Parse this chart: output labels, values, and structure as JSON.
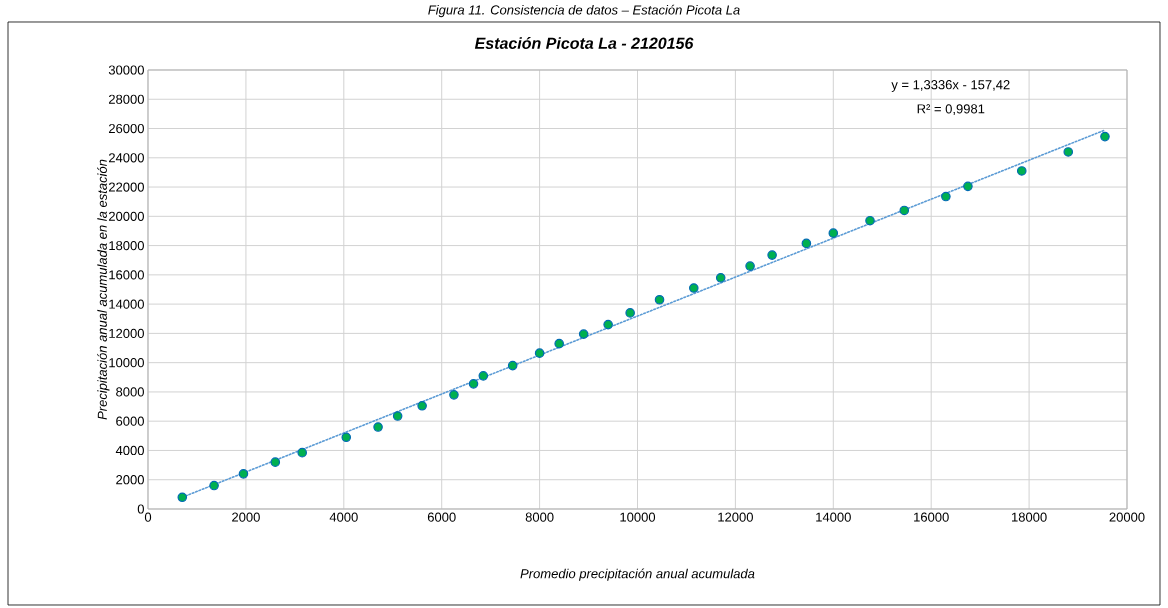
{
  "chart_data": {
    "type": "scatter",
    "title": "Estación Picota La - 2120156",
    "xlabel": "Promedio precipitación anual acumulada",
    "ylabel": "Precipitación anual acumulada en la estación",
    "annotations": [
      "Figura 11. Consistencia de datos – Estación Picota La",
      "y = 1,3336x - 157,42",
      "R² = 0,9981"
    ],
    "series": [
      {
        "color": "#00b050",
        "marker": "circle",
        "x": [
          700,
          1350,
          1950,
          2600,
          3150,
          4050,
          4700,
          5100,
          5600,
          6250,
          6650,
          6850,
          7450,
          8000,
          8400,
          8900,
          9400,
          9850,
          10450,
          11150,
          11700,
          12300,
          12750,
          13450,
          14000,
          14750,
          15450,
          16300,
          16750,
          17850,
          18800,
          19550
        ],
        "values": [
          800,
          1600,
          2400,
          3200,
          3850,
          4900,
          5600,
          6350,
          7050,
          7800,
          8550,
          9100,
          9800,
          10650,
          11300,
          11950,
          12600,
          13400,
          14300,
          15100,
          15800,
          16600,
          17350,
          18150,
          18850,
          19700,
          20400,
          21350,
          22050,
          23100,
          24400,
          25450
        ]
      },
      {
        "type": "line",
        "color": "#5b9bd5",
        "line_style": "dotted",
        "x": [
          700,
          19550
        ],
        "values": [
          800,
          25900
        ]
      }
    ],
    "xlim": [
      0,
      20000
    ],
    "ylim": [
      0,
      30000
    ],
    "xticks": [
      0,
      2000,
      4000,
      6000,
      8000,
      10000,
      12000,
      14000,
      16000,
      18000,
      20000
    ],
    "yticks": [
      0,
      2000,
      4000,
      6000,
      8000,
      10000,
      12000,
      14000,
      16000,
      18000,
      20000,
      22000,
      24000,
      26000,
      28000,
      30000
    ],
    "grid": true
  }
}
